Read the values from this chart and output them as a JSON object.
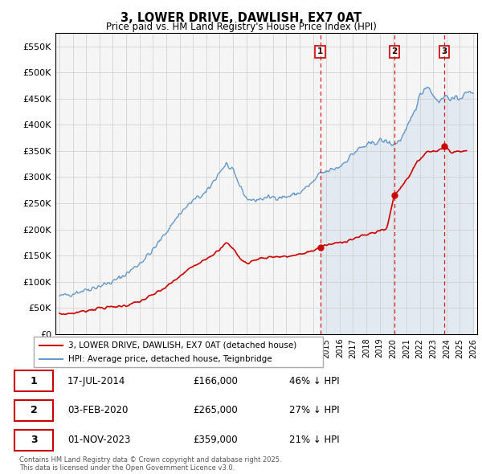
{
  "title_line1": "3, LOWER DRIVE, DAWLISH, EX7 0AT",
  "title_line2": "Price paid vs. HM Land Registry's House Price Index (HPI)",
  "ylim": [
    0,
    575000
  ],
  "yticks": [
    0,
    50000,
    100000,
    150000,
    200000,
    250000,
    300000,
    350000,
    400000,
    450000,
    500000,
    550000
  ],
  "ytick_labels": [
    "£0",
    "£50K",
    "£100K",
    "£150K",
    "£200K",
    "£250K",
    "£300K",
    "£350K",
    "£400K",
    "£450K",
    "£500K",
    "£550K"
  ],
  "hpi_color": "#6699cc",
  "price_color": "#cc0000",
  "dashed_color": "#cc0000",
  "background_color": "#ffffff",
  "grid_color": "#cccccc",
  "transaction_dates_num": [
    2014.542,
    2020.085,
    2023.833
  ],
  "transaction_prices": [
    166000,
    265000,
    359000
  ],
  "transaction_labels": [
    "1",
    "2",
    "3"
  ],
  "transaction_info": [
    {
      "label": "1",
      "date": "17-JUL-2014",
      "price": "£166,000",
      "pct": "46% ↓ HPI"
    },
    {
      "label": "2",
      "date": "03-FEB-2020",
      "price": "£265,000",
      "pct": "27% ↓ HPI"
    },
    {
      "label": "3",
      "date": "01-NOV-2023",
      "price": "£359,000",
      "pct": "21% ↓ HPI"
    }
  ],
  "legend_label_price": "3, LOWER DRIVE, DAWLISH, EX7 0AT (detached house)",
  "legend_label_hpi": "HPI: Average price, detached house, Teignbridge",
  "footnote": "Contains HM Land Registry data © Crown copyright and database right 2025.\nThis data is licensed under the Open Government Licence v3.0.",
  "hpi_ctrl_t": [
    1995.0,
    1996.0,
    1997.0,
    1998.0,
    1999.0,
    2000.0,
    2001.0,
    2002.0,
    2003.0,
    2004.0,
    2005.0,
    2006.0,
    2007.0,
    2007.5,
    2008.0,
    2008.5,
    2009.0,
    2009.5,
    2010.0,
    2011.0,
    2012.0,
    2013.0,
    2014.0,
    2014.542,
    2015.0,
    2016.0,
    2017.0,
    2017.5,
    2018.0,
    2018.5,
    2019.0,
    2019.5,
    2020.0,
    2020.085,
    2020.5,
    2021.0,
    2021.5,
    2022.0,
    2022.5,
    2022.8,
    2023.0,
    2023.5,
    2023.833,
    2024.0,
    2024.5,
    2025.0,
    2025.5,
    2026.0
  ],
  "hpi_ctrl_v": [
    72000,
    78000,
    85000,
    92000,
    100000,
    115000,
    135000,
    160000,
    195000,
    230000,
    255000,
    270000,
    310000,
    325000,
    310000,
    285000,
    260000,
    255000,
    258000,
    262000,
    262000,
    270000,
    290000,
    307000,
    310000,
    320000,
    345000,
    355000,
    360000,
    365000,
    370000,
    368000,
    362000,
    363000,
    370000,
    390000,
    420000,
    455000,
    475000,
    468000,
    455000,
    445000,
    454000,
    455000,
    448000,
    452000,
    460000,
    465000
  ],
  "price_ctrl_t": [
    1995.0,
    1996.0,
    1997.0,
    1998.0,
    1999.0,
    2000.0,
    2001.0,
    2002.0,
    2003.0,
    2004.0,
    2005.0,
    2006.0,
    2007.0,
    2007.5,
    2008.0,
    2008.5,
    2009.0,
    2009.5,
    2010.0,
    2011.0,
    2012.0,
    2013.0,
    2014.0,
    2014.542,
    2015.0,
    2016.0,
    2017.0,
    2018.0,
    2019.0,
    2019.5,
    2020.085,
    2021.0,
    2022.0,
    2022.5,
    2023.0,
    2023.5,
    2023.833,
    2024.0,
    2024.5,
    2025.0,
    2025.5
  ],
  "price_ctrl_v": [
    38000,
    40000,
    45000,
    50000,
    52000,
    55000,
    62000,
    75000,
    90000,
    110000,
    130000,
    145000,
    160000,
    175000,
    165000,
    145000,
    135000,
    140000,
    145000,
    148000,
    148000,
    152000,
    160000,
    166000,
    170000,
    175000,
    182000,
    190000,
    198000,
    200000,
    265000,
    295000,
    335000,
    348000,
    350000,
    352000,
    359000,
    355000,
    348000,
    350000,
    348000
  ]
}
